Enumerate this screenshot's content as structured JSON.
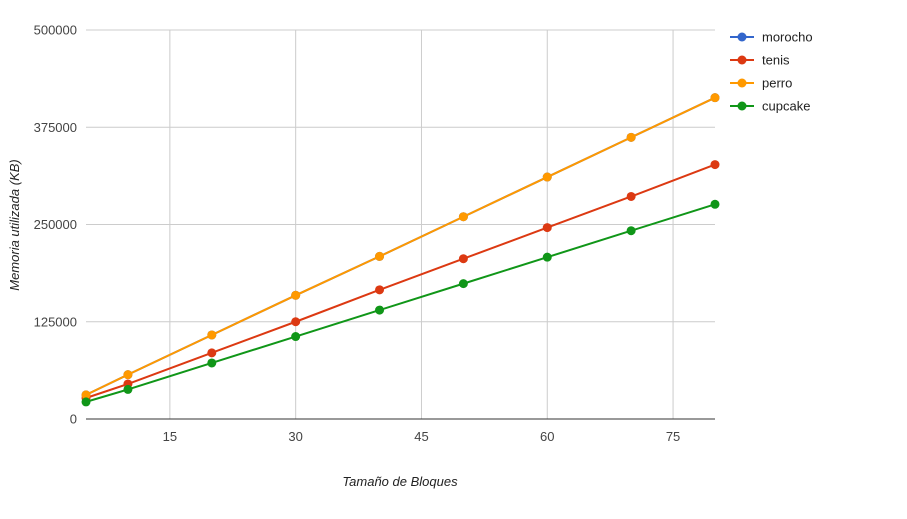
{
  "chart_data": {
    "type": "line",
    "xlabel": "Tamaño de Bloques",
    "ylabel": "Memoria utilizada (KB)",
    "xlim": [
      5,
      80
    ],
    "ylim": [
      0,
      500000
    ],
    "x_ticks": [
      15,
      30,
      45,
      60,
      75
    ],
    "y_ticks": [
      0,
      125000,
      250000,
      375000,
      500000
    ],
    "x_tick_labels": [
      "15",
      "30",
      "45",
      "60",
      "75"
    ],
    "y_tick_labels": [
      "0",
      "125000",
      "250000",
      "375000",
      "500000"
    ],
    "grid": true,
    "legend_position": "right",
    "x": [
      5,
      10,
      20,
      30,
      40,
      50,
      60,
      70,
      80
    ],
    "series": [
      {
        "name": "morocho",
        "color": "#3366cc",
        "values": [
          31000,
          57000,
          108000,
          159000,
          209000,
          260000,
          311000,
          362000,
          413000
        ]
      },
      {
        "name": "tenis",
        "color": "#dc3912",
        "values": [
          27000,
          45000,
          85000,
          125000,
          166000,
          206000,
          246000,
          286000,
          327000
        ]
      },
      {
        "name": "perro",
        "color": "#ff9900",
        "values": [
          31000,
          57000,
          108000,
          159000,
          209000,
          260000,
          311000,
          362000,
          413000
        ]
      },
      {
        "name": "cupcake",
        "color": "#109618",
        "values": [
          22000,
          38000,
          72000,
          106000,
          140000,
          174000,
          208000,
          242000,
          276000
        ]
      }
    ]
  }
}
